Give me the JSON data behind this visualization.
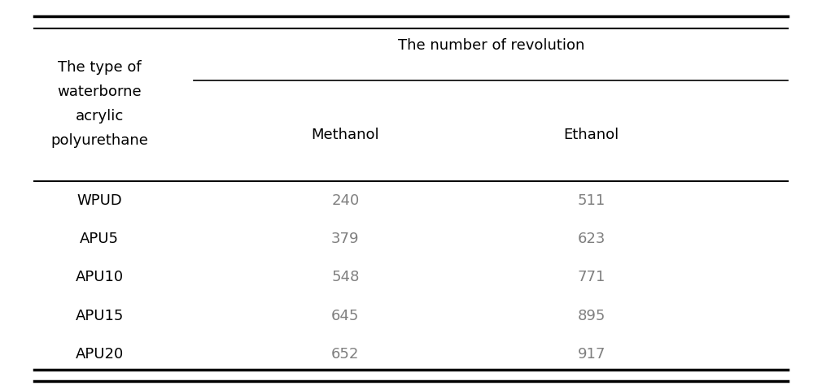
{
  "col1_header_lines": [
    "The type of",
    "waterborne",
    "acrylic",
    "polyurethane"
  ],
  "col2_header_top": "The number of revolution",
  "col2_sub": "Methanol",
  "col3_sub": "Ethanol",
  "rows": [
    {
      "type": "WPUD",
      "methanol": "240",
      "ethanol": "511"
    },
    {
      "type": "APU5",
      "methanol": "379",
      "ethanol": "623"
    },
    {
      "type": "APU10",
      "methanol": "548",
      "ethanol": "771"
    },
    {
      "type": "APU15",
      "methanol": "645",
      "ethanol": "895"
    },
    {
      "type": "APU20",
      "methanol": "652",
      "ethanol": "917"
    }
  ],
  "bg_color": "#ffffff",
  "header_text_color": "#000000",
  "data_text_color": "#7f7f7f",
  "font_size_header": 13,
  "font_size_data": 13,
  "line_color": "#000000",
  "fig_width": 10.1,
  "fig_height": 4.8,
  "dpi": 100
}
